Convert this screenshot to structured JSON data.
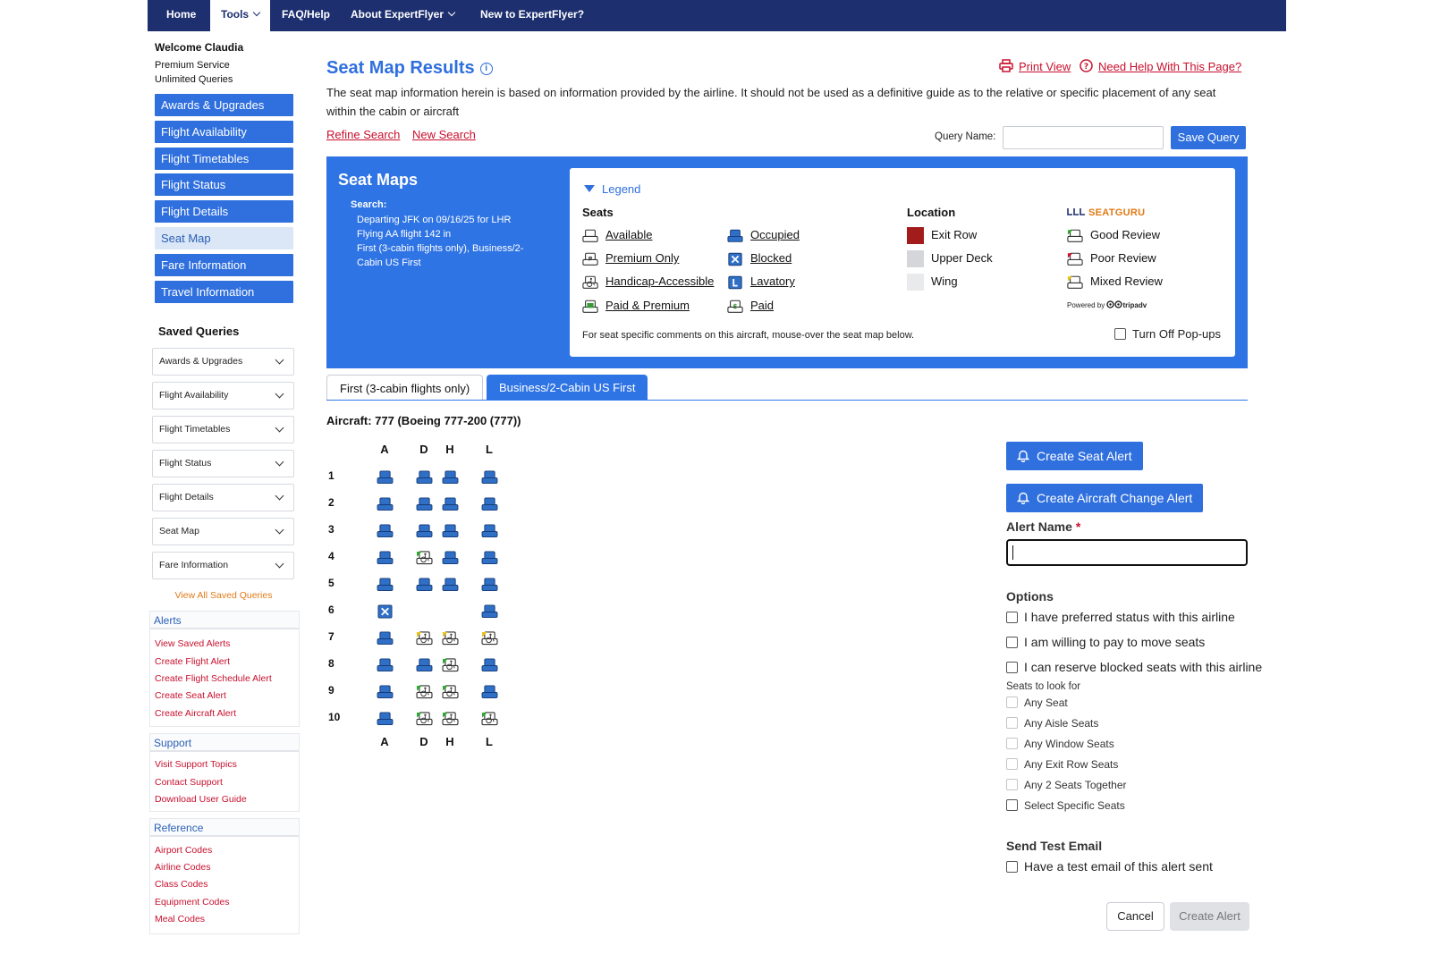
{
  "nav": {
    "home": "Home",
    "tools": "Tools",
    "faq": "FAQ/Help",
    "about": "About ExpertFlyer",
    "new": "New to ExpertFlyer?"
  },
  "sidebar": {
    "welcome": "Welcome Claudia",
    "service": "Premium Service",
    "queries": "Unlimited Queries",
    "buttons": [
      "Awards & Upgrades",
      "Flight Availability",
      "Flight Timetables",
      "Flight Status",
      "Flight Details",
      "Seat Map",
      "Fare Information",
      "Travel Information"
    ],
    "saved_title": "Saved Queries",
    "saved": [
      "Awards & Upgrades",
      "Flight Availability",
      "Flight Timetables",
      "Flight Status",
      "Flight Details",
      "Seat Map",
      "Fare Information"
    ],
    "view_all": "View All Saved Queries",
    "alerts_head": "Alerts",
    "alerts": [
      "View Saved Alerts",
      "Create Flight Alert",
      "Create Flight Schedule Alert",
      "Create Seat Alert",
      "Create Aircraft Alert"
    ],
    "support_head": "Support",
    "support": [
      "Visit Support Topics",
      "Contact Support",
      "Download User Guide"
    ],
    "reference_head": "Reference",
    "reference": [
      "Airport Codes",
      "Airline Codes",
      "Class Codes",
      "Equipment Codes",
      "Meal Codes"
    ]
  },
  "main": {
    "title": "Seat Map Results",
    "print": "Print View",
    "help": "Need Help With This Page?",
    "disclaimer": "The seat map information herein is based on information provided by the airline. It should not be used as a definitive guide as to the relative or specific placement of any seat within the cabin or aircraft",
    "refine": "Refine Search",
    "new_search": "New Search",
    "query_name_label": "Query Name:",
    "save_query": "Save Query"
  },
  "panel": {
    "title": "Seat Maps",
    "search_label": "Search:",
    "line1": "Departing JFK on 09/16/25 for LHR",
    "line2": "Flying AA flight 142 in",
    "line3": "First (3-cabin flights only), Business/2-Cabin US First"
  },
  "legend": {
    "toggle": "Legend",
    "seats_head": "Seats",
    "location_head": "Location",
    "seatguru": "SEATGURU",
    "seats_col1": [
      "Available",
      "Premium Only",
      "Handicap-Accessible",
      "Paid & Premium"
    ],
    "seats_col2": [
      "Occupied",
      "Blocked",
      "Lavatory",
      "Paid"
    ],
    "location": [
      "Exit Row",
      "Upper Deck",
      "Wing"
    ],
    "reviews": [
      "Good Review",
      "Poor Review",
      "Mixed Review"
    ],
    "powered": "Powered by",
    "tripadv": "tripadv",
    "footer": "For seat specific comments on this aircraft, mouse-over the seat map below.",
    "popups": "Turn Off Pop-ups",
    "colors": {
      "exit_row": "#a31c1c",
      "upper_deck": "#d4d6da",
      "wing": "#e9eaec",
      "accent": "#2f74e4"
    }
  },
  "tabs": [
    "First (3-cabin flights only)",
    "Business/2-Cabin US First"
  ],
  "aircraft": "Aircraft: 777 (Boeing 777-200 (777))",
  "seatmap": {
    "columns": [
      "A",
      "D",
      "H",
      "L"
    ],
    "rows": [
      {
        "num": "1",
        "seats": [
          "occupied",
          "occupied",
          "occupied",
          "occupied"
        ]
      },
      {
        "num": "2",
        "seats": [
          "occupied",
          "occupied",
          "occupied",
          "occupied"
        ]
      },
      {
        "num": "3",
        "seats": [
          "occupied",
          "occupied",
          "occupied",
          "occupied"
        ]
      },
      {
        "num": "4",
        "seats": [
          "occupied",
          "handicap-good",
          "occupied",
          "occupied"
        ]
      },
      {
        "num": "5",
        "seats": [
          "occupied",
          "occupied",
          "occupied",
          "occupied"
        ]
      },
      {
        "num": "6",
        "seats": [
          "blocked",
          "",
          "",
          "occupied"
        ]
      },
      {
        "num": "7",
        "seats": [
          "occupied",
          "handicap-mixed",
          "handicap-mixed",
          "handicap-mixed"
        ]
      },
      {
        "num": "8",
        "seats": [
          "occupied",
          "occupied",
          "handicap-good",
          "occupied"
        ]
      },
      {
        "num": "9",
        "seats": [
          "occupied",
          "handicap-good",
          "handicap-good",
          "occupied"
        ]
      },
      {
        "num": "10",
        "seats": [
          "occupied",
          "handicap-good",
          "handicap-good",
          "handicap-good"
        ]
      }
    ]
  },
  "alert": {
    "create_seat": "Create Seat Alert",
    "create_aircraft": "Create Aircraft Change Alert",
    "name_label": "Alert Name",
    "req": "*",
    "options_head": "Options",
    "options": [
      "I have preferred status with this airline",
      "I am willing to pay to move seats",
      "I can reserve blocked seats with this airline"
    ],
    "seats_look": "Seats to look for",
    "seat_options": [
      "Any Seat",
      "Any Aisle Seats",
      "Any Window Seats",
      "Any Exit Row Seats",
      "Any 2 Seats Together",
      "Select Specific Seats"
    ],
    "test_head": "Send Test Email",
    "test_option": "Have a test email of this alert sent",
    "cancel": "Cancel",
    "create": "Create Alert"
  }
}
